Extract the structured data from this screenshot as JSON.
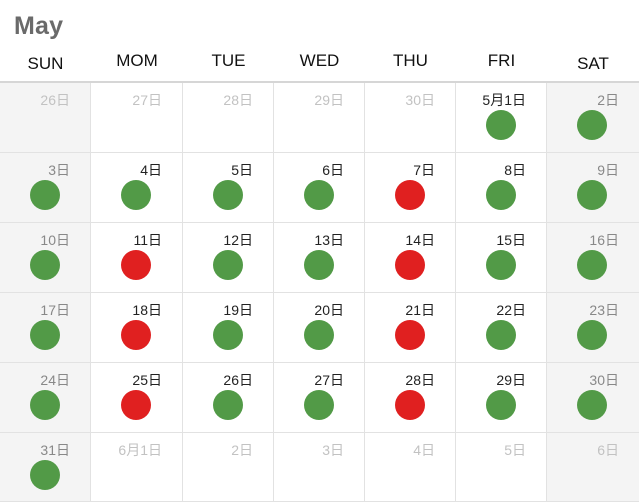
{
  "header": {
    "month": "May"
  },
  "weekdays": [
    "SUN",
    "MOM",
    "TUE",
    "WED",
    "THU",
    "FRI",
    "SAT"
  ],
  "colors": {
    "green": "#529a47",
    "red": "#e02020",
    "weekend_bg": "#f4f4f4"
  },
  "weeks": [
    [
      {
        "label": "26日",
        "other": true,
        "dot": null
      },
      {
        "label": "27日",
        "other": true,
        "dot": null
      },
      {
        "label": "28日",
        "other": true,
        "dot": null
      },
      {
        "label": "29日",
        "other": true,
        "dot": null
      },
      {
        "label": "30日",
        "other": true,
        "dot": null
      },
      {
        "label": "5月1日",
        "other": false,
        "dot": "green"
      },
      {
        "label": "2日",
        "other": false,
        "dot": "green"
      }
    ],
    [
      {
        "label": "3日",
        "other": false,
        "dot": "green"
      },
      {
        "label": "4日",
        "other": false,
        "dot": "green"
      },
      {
        "label": "5日",
        "other": false,
        "dot": "green"
      },
      {
        "label": "6日",
        "other": false,
        "dot": "green"
      },
      {
        "label": "7日",
        "other": false,
        "dot": "red"
      },
      {
        "label": "8日",
        "other": false,
        "dot": "green"
      },
      {
        "label": "9日",
        "other": false,
        "dot": "green"
      }
    ],
    [
      {
        "label": "10日",
        "other": false,
        "dot": "green"
      },
      {
        "label": "11日",
        "other": false,
        "dot": "red"
      },
      {
        "label": "12日",
        "other": false,
        "dot": "green"
      },
      {
        "label": "13日",
        "other": false,
        "dot": "green"
      },
      {
        "label": "14日",
        "other": false,
        "dot": "red"
      },
      {
        "label": "15日",
        "other": false,
        "dot": "green"
      },
      {
        "label": "16日",
        "other": false,
        "dot": "green"
      }
    ],
    [
      {
        "label": "17日",
        "other": false,
        "dot": "green"
      },
      {
        "label": "18日",
        "other": false,
        "dot": "red"
      },
      {
        "label": "19日",
        "other": false,
        "dot": "green"
      },
      {
        "label": "20日",
        "other": false,
        "dot": "green"
      },
      {
        "label": "21日",
        "other": false,
        "dot": "red"
      },
      {
        "label": "22日",
        "other": false,
        "dot": "green"
      },
      {
        "label": "23日",
        "other": false,
        "dot": "green"
      }
    ],
    [
      {
        "label": "24日",
        "other": false,
        "dot": "green"
      },
      {
        "label": "25日",
        "other": false,
        "dot": "red"
      },
      {
        "label": "26日",
        "other": false,
        "dot": "green"
      },
      {
        "label": "27日",
        "other": false,
        "dot": "green"
      },
      {
        "label": "28日",
        "other": false,
        "dot": "red"
      },
      {
        "label": "29日",
        "other": false,
        "dot": "green"
      },
      {
        "label": "30日",
        "other": false,
        "dot": "green"
      }
    ],
    [
      {
        "label": "31日",
        "other": false,
        "dot": "green"
      },
      {
        "label": "6月1日",
        "other": true,
        "dot": null
      },
      {
        "label": "2日",
        "other": true,
        "dot": null
      },
      {
        "label": "3日",
        "other": true,
        "dot": null
      },
      {
        "label": "4日",
        "other": true,
        "dot": null
      },
      {
        "label": "5日",
        "other": true,
        "dot": null
      },
      {
        "label": "6日",
        "other": true,
        "dot": null
      }
    ]
  ]
}
